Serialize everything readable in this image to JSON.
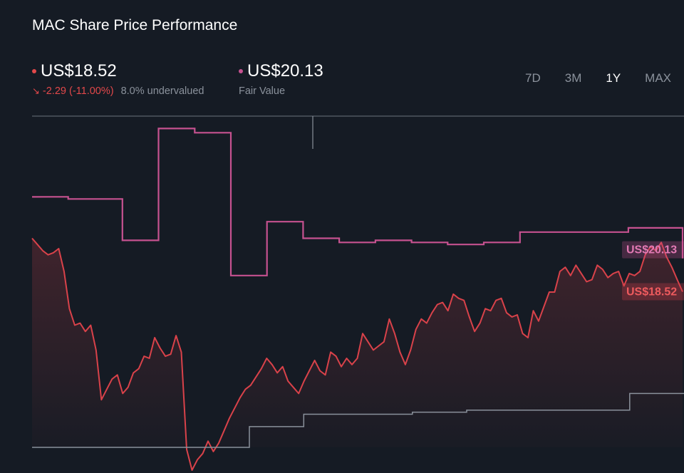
{
  "header": {
    "title": "MAC Share Price Performance",
    "price": "US$18.52",
    "change": "-2.29 (-11.00%)",
    "valuation_note": "8.0% undervalued",
    "fair_value": "US$20.13",
    "fair_value_label": "Fair Value"
  },
  "ranges": [
    {
      "label": "7D",
      "active": false
    },
    {
      "label": "3M",
      "active": false
    },
    {
      "label": "1Y",
      "active": true
    },
    {
      "label": "MAX",
      "active": false
    }
  ],
  "colors": {
    "background": "#151b24",
    "price": "#d9424a",
    "fair_value": "#c65290",
    "baseline": "#8a919b"
  },
  "chart_data": {
    "type": "line",
    "x": "trading days (1-year window)",
    "xlabel": "",
    "ylabel": "",
    "ylim": [
      11,
      27
    ],
    "grid": false,
    "series": [
      {
        "name": "Share Price",
        "values": [
          21.1,
          20.8,
          20.5,
          20.3,
          20.4,
          20.6,
          19.5,
          17.7,
          16.9,
          17.0,
          16.6,
          16.9,
          15.7,
          13.3,
          13.8,
          14.3,
          14.5,
          13.6,
          13.9,
          14.6,
          14.8,
          15.4,
          15.3,
          16.3,
          15.8,
          15.4,
          15.5,
          16.4,
          15.6,
          10.9,
          9.9,
          10.4,
          10.7,
          11.3,
          10.8,
          11.2,
          11.8,
          12.4,
          12.9,
          13.4,
          13.8,
          14.0,
          14.4,
          14.8,
          15.3,
          15.0,
          14.6,
          14.9,
          14.2,
          13.9,
          13.6,
          14.2,
          14.7,
          15.2,
          14.7,
          14.5,
          15.6,
          15.4,
          14.9,
          15.3,
          15.0,
          15.3,
          16.5,
          16.1,
          15.7,
          15.9,
          16.1,
          17.2,
          16.5,
          15.6,
          15.0,
          15.7,
          16.7,
          17.2,
          17.0,
          17.5,
          17.9,
          18.0,
          17.6,
          18.4,
          18.2,
          18.1,
          17.3,
          16.6,
          17.0,
          17.7,
          17.6,
          18.1,
          18.2,
          17.5,
          17.3,
          17.4,
          16.5,
          16.3,
          17.6,
          17.1,
          17.8,
          18.5,
          18.5,
          19.5,
          19.7,
          19.3,
          19.8,
          19.4,
          19.0,
          19.1,
          19.8,
          19.6,
          19.2,
          19.4,
          19.5,
          18.8,
          19.4,
          19.3,
          19.5,
          20.3,
          20.7,
          20.5,
          20.9,
          20.2,
          19.7,
          19.1,
          18.52
        ]
      },
      {
        "name": "Fair Value",
        "values": [
          23.1,
          23.1,
          23.0,
          23.0,
          23.0,
          21.0,
          21.0,
          26.4,
          26.4,
          26.2,
          26.2,
          19.3,
          19.3,
          21.9,
          21.9,
          21.1,
          21.1,
          20.9,
          20.9,
          21.0,
          21.0,
          20.9,
          20.9,
          20.8,
          20.8,
          20.9,
          20.9,
          21.4,
          21.4,
          21.4,
          21.4,
          21.4,
          21.4,
          21.6,
          21.6,
          21.6,
          20.13
        ]
      },
      {
        "name": "Baseline",
        "values": [
          11,
          11,
          11,
          11,
          12.0,
          12.6,
          12.6,
          12.7,
          12.8,
          12.8,
          12.8,
          13.6,
          13.6
        ]
      }
    ],
    "tags": [
      {
        "label": "US$20.13",
        "series": "Fair Value"
      },
      {
        "label": "US$18.52",
        "series": "Share Price"
      }
    ]
  }
}
